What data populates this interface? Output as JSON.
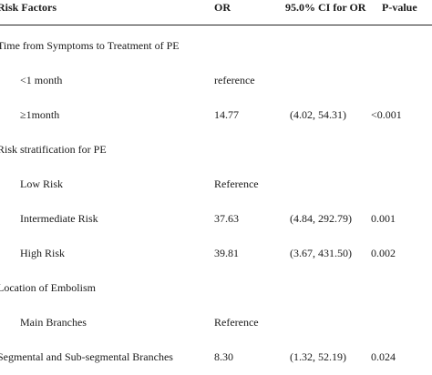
{
  "table": {
    "headers": [
      "Risk Factors",
      "OR",
      "95.0% CI for OR",
      "P-value"
    ],
    "rows": [
      {
        "label": "Time from Symptoms to Treatment of PE",
        "or": "",
        "ci": "",
        "p": "",
        "indent": false
      },
      {
        "label": "<1 month",
        "or": "reference",
        "ci": "",
        "p": "",
        "indent": true
      },
      {
        "label": "≥1month",
        "or": "14.77",
        "ci": "(4.02, 54.31)",
        "p": "<0.001",
        "indent": true
      },
      {
        "label": "Risk stratification for PE",
        "or": "",
        "ci": "",
        "p": "",
        "indent": false
      },
      {
        "label": "Low Risk",
        "or": "Reference",
        "ci": "",
        "p": "",
        "indent": true
      },
      {
        "label": "Intermediate Risk",
        "or": "37.63",
        "ci": "(4.84, 292.79)",
        "p": "0.001",
        "indent": true
      },
      {
        "label": "High Risk",
        "or": "39.81",
        "ci": "(3.67, 431.50)",
        "p": "0.002",
        "indent": true
      },
      {
        "label": "Location of Embolism",
        "or": "",
        "ci": "",
        "p": "",
        "indent": false
      },
      {
        "label": "Main Branches",
        "or": "Reference",
        "ci": "",
        "p": "",
        "indent": true
      },
      {
        "label": "Segmental and Sub-segmental Branches",
        "or": "8.30",
        "ci": "(1.32, 52.19)",
        "p": "0.024",
        "indent": false
      }
    ]
  }
}
